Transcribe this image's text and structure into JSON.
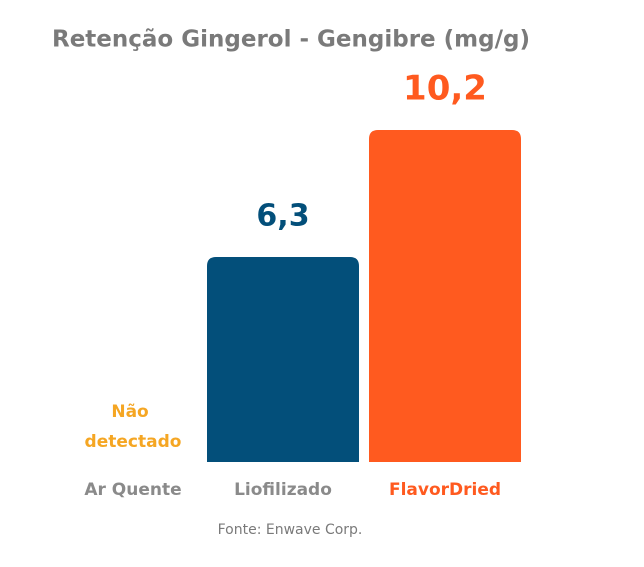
{
  "chart_data": {
    "type": "bar",
    "title": "Retenção Gingerol - Gengibre (mg/g)",
    "categories": [
      "Ar Quente",
      "Liofilizado",
      "FlavorDried"
    ],
    "values": [
      null,
      6.3,
      10.2
    ],
    "value_labels": [
      "Não detectado",
      "6,3",
      "10,2"
    ],
    "colors": [
      null,
      "#034f7a",
      "#ff5a1f"
    ],
    "value_label_colors": [
      "#f5a623",
      "#034f7a",
      "#ff5a1f"
    ],
    "category_label_colors": [
      "#8a8a8a",
      "#8a8a8a",
      "#ff5a1f"
    ],
    "ylim": [
      0,
      10.2
    ],
    "source": "Fonte: Enwave Corp."
  }
}
